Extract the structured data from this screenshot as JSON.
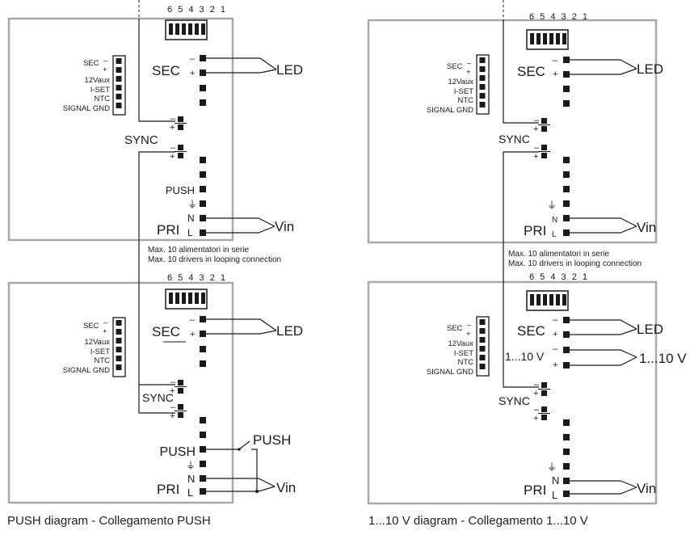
{
  "dip_numbers": "6 5 4 3 2 1",
  "side_connector": {
    "sec": "SEC",
    "minus": "–",
    "plus": "+",
    "aux": "12Vaux",
    "iset": "I-SET",
    "ntc": "NTC",
    "gnd": "SIGNAL GND"
  },
  "labels": {
    "sec": "SEC",
    "led": "LED",
    "sync": "SYNC",
    "push": "PUSH",
    "pri": "PRI",
    "n": "N",
    "l": "L",
    "vin": "Vin",
    "minus": "–",
    "plus": "+",
    "earth": "⏚",
    "dim_terminal": "1...10 V",
    "dim_output": "1...10 V"
  },
  "notes": {
    "line1": "Max. 10 alimentatori in  serie",
    "line2": "Max. 10 drivers in looping connection"
  },
  "captions": {
    "left": "PUSH diagram - Collegamento PUSH",
    "right": "1...10 V diagram - Collegamento 1...10 V"
  },
  "colors": {
    "box_border": "#a8a8a8",
    "line": "#1a1a1a"
  }
}
